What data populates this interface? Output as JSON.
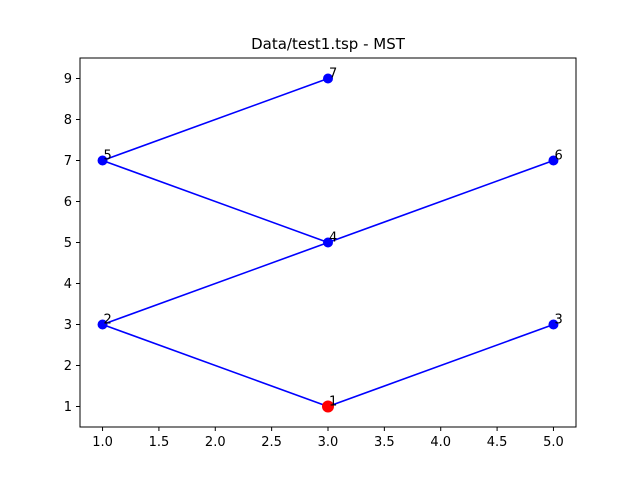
{
  "chart_data": {
    "type": "scatter",
    "title": "Data/test1.tsp - MST",
    "xlabel": "",
    "ylabel": "",
    "xlim": [
      0.8,
      5.2
    ],
    "ylim": [
      0.5,
      9.5
    ],
    "x_ticks": [
      "1.0",
      "1.5",
      "2.0",
      "2.5",
      "3.0",
      "3.5",
      "4.0",
      "4.5",
      "5.0"
    ],
    "y_ticks": [
      "1",
      "2",
      "3",
      "4",
      "5",
      "6",
      "7",
      "8",
      "9"
    ],
    "grid": false,
    "nodes": [
      {
        "id": "1",
        "x": 3,
        "y": 1,
        "color": "#ff0000",
        "start": true
      },
      {
        "id": "2",
        "x": 1,
        "y": 3,
        "color": "#0000ff"
      },
      {
        "id": "3",
        "x": 5,
        "y": 3,
        "color": "#0000ff"
      },
      {
        "id": "4",
        "x": 3,
        "y": 5,
        "color": "#0000ff"
      },
      {
        "id": "5",
        "x": 1,
        "y": 7,
        "color": "#0000ff"
      },
      {
        "id": "6",
        "x": 5,
        "y": 7,
        "color": "#0000ff"
      },
      {
        "id": "7",
        "x": 3,
        "y": 9,
        "color": "#0000ff"
      }
    ],
    "edges": [
      [
        "7",
        "5"
      ],
      [
        "5",
        "4"
      ],
      [
        "4",
        "6"
      ],
      [
        "4",
        "2"
      ],
      [
        "2",
        "1"
      ],
      [
        "1",
        "3"
      ]
    ],
    "edge_color": "#0000ff"
  }
}
